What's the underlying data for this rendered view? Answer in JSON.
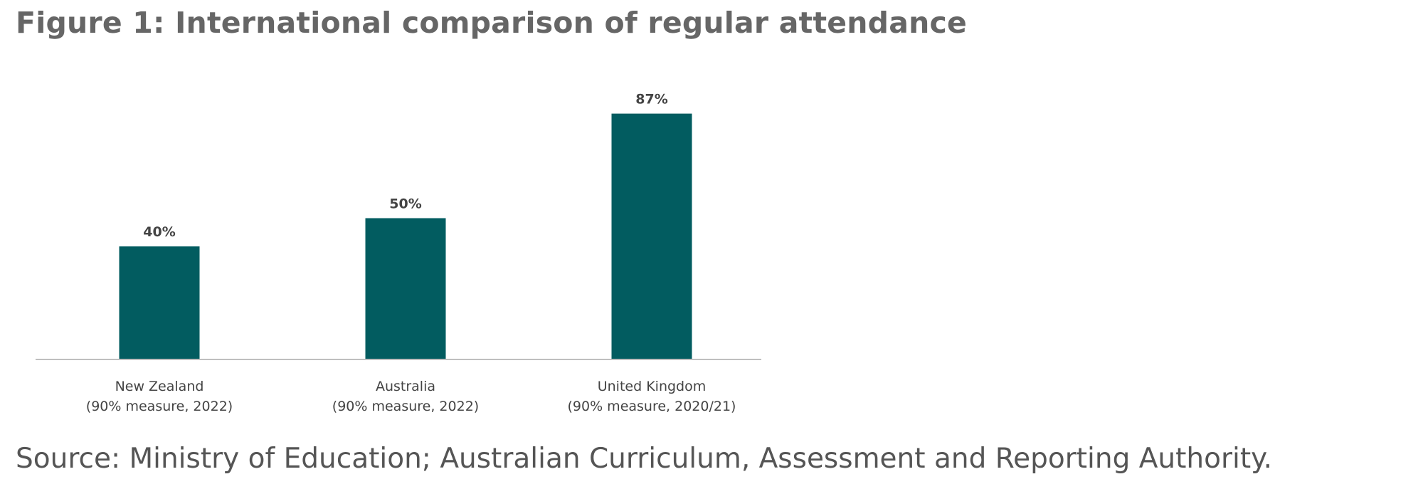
{
  "figure": {
    "title": "Figure 1: International comparison of regular attendance",
    "source": "Source: Ministry of Education; Australian Curriculum, Assessment and Reporting Authority."
  },
  "chart_data": {
    "type": "bar",
    "title": "",
    "xlabel": "",
    "ylabel": "",
    "categories": [
      [
        "New Zealand",
        "(90% measure, 2022)"
      ],
      [
        "Australia",
        "(90% measure, 2022)"
      ],
      [
        "United Kingdom",
        "(90% measure, 2020/21)"
      ]
    ],
    "values": [
      40,
      50,
      87
    ],
    "data_labels": [
      "40%",
      "50%",
      "87%"
    ],
    "ylim": [
      0,
      100
    ],
    "grid": false,
    "legend": "none",
    "bar_color": "#025c60"
  }
}
